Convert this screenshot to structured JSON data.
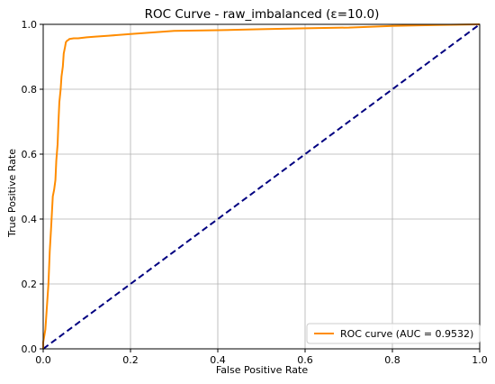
{
  "chart_data": {
    "type": "line",
    "title": "ROC Curve - raw_imbalanced (ε=10.0)",
    "xlabel": "False Positive Rate",
    "ylabel": "True Positive Rate",
    "xlim": [
      0.0,
      1.0
    ],
    "ylim": [
      0.0,
      1.0
    ],
    "xticks": [
      "0.0",
      "0.2",
      "0.4",
      "0.6",
      "0.8",
      "1.0"
    ],
    "yticks": [
      "0.0",
      "0.2",
      "0.4",
      "0.6",
      "0.8",
      "1.0"
    ],
    "grid": true,
    "legend_position": "lower-right",
    "series": [
      {
        "name": "ROC curve (AUC = 0.9532)",
        "color": "#ff8c00",
        "style": "solid",
        "x": [
          0.0,
          0.0,
          0.005,
          0.008,
          0.012,
          0.015,
          0.018,
          0.02,
          0.022,
          0.025,
          0.028,
          0.03,
          0.033,
          0.035,
          0.037,
          0.04,
          0.042,
          0.045,
          0.047,
          0.05,
          0.052,
          0.055,
          0.058,
          0.06,
          0.065,
          0.07,
          0.08,
          0.1,
          0.12,
          0.15,
          0.2,
          0.25,
          0.3,
          0.4,
          0.5,
          0.6,
          0.7,
          0.8,
          0.9,
          1.0
        ],
        "y": [
          0.0,
          0.02,
          0.06,
          0.12,
          0.2,
          0.3,
          0.37,
          0.42,
          0.47,
          0.49,
          0.52,
          0.58,
          0.63,
          0.7,
          0.76,
          0.8,
          0.84,
          0.87,
          0.91,
          0.93,
          0.945,
          0.95,
          0.952,
          0.955,
          0.956,
          0.957,
          0.957,
          0.96,
          0.962,
          0.965,
          0.97,
          0.975,
          0.98,
          0.982,
          0.985,
          0.988,
          0.99,
          0.995,
          0.998,
          1.0
        ]
      },
      {
        "name": "",
        "color": "#000080",
        "style": "dashed",
        "x": [
          0.0,
          1.0
        ],
        "y": [
          0.0,
          1.0
        ]
      }
    ]
  }
}
